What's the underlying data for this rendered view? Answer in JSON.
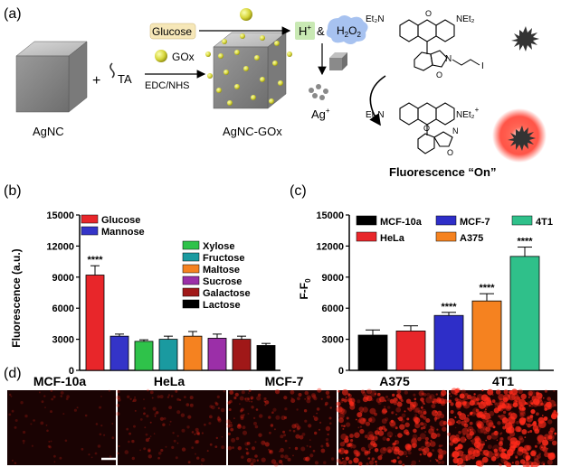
{
  "panel_a": {
    "label": "(a)",
    "agnc": "AgNC",
    "ta": "TA",
    "edc": "EDC/NHS",
    "gox": "GOx",
    "glucose": "Glucose",
    "agnc_gox": "AgNC-GOx",
    "hplus": "H",
    "hplus_sup": "+",
    "amp": "&",
    "h2o2_h": "H",
    "h2o2_2a": "2",
    "h2o2_o": "O",
    "h2o2_2b": "2",
    "ag": "Ag",
    "ag_sup": "+",
    "net2_1": "Et₂N",
    "net2_2": "NEt₂",
    "net2_3": "Et₂N",
    "net2_4": "NEt₂",
    "n_atom": "N",
    "o_atom": "O",
    "i_atom": "I",
    "o_carbonyl": "O",
    "o_ox": "O",
    "n_ox": "N",
    "n_plus": "+",
    "fluorescence_on": "Fluorescence “On”"
  },
  "chart_data": [
    {
      "type": "bar",
      "panel": "(b)",
      "ylabel": "Fluorescence (a.u.)",
      "ylim": [
        0,
        15000
      ],
      "yticks": [
        "0",
        "3000",
        "6000",
        "9000",
        "12000",
        "15000"
      ],
      "categories": [
        "Glucose",
        "Mannose",
        "Xylose",
        "Fructose",
        "Maltose",
        "Sucrose",
        "Galactose",
        "Lactose"
      ],
      "values": [
        9200,
        3300,
        2800,
        3000,
        3300,
        3100,
        3000,
        2400
      ],
      "errors": [
        900,
        200,
        150,
        300,
        450,
        400,
        300,
        200
      ],
      "colors": [
        "#e8262a",
        "#3434c8",
        "#2fc24a",
        "#1a9aa0",
        "#f58220",
        "#9b2fa8",
        "#a01818",
        "#000000"
      ],
      "annotations": [
        {
          "category": "Glucose",
          "text": "****"
        }
      ]
    },
    {
      "type": "bar",
      "panel": "(c)",
      "ylabel": "F-F",
      "ylabel_sub": "0",
      "ylim": [
        0,
        15000
      ],
      "yticks": [
        "0",
        "3000",
        "6000",
        "9000",
        "12000",
        "15000"
      ],
      "categories": [
        "MCF-10a",
        "HeLa",
        "MCF-7",
        "A375",
        "4T1"
      ],
      "values": [
        3400,
        3800,
        5300,
        6700,
        11000
      ],
      "errors": [
        500,
        500,
        300,
        700,
        900
      ],
      "colors": [
        "#000000",
        "#e8262a",
        "#2e2ec8",
        "#f58220",
        "#2fc08a"
      ],
      "annotations": [
        {
          "category": "MCF-7",
          "text": "****"
        },
        {
          "category": "A375",
          "text": "****"
        },
        {
          "category": "4T1",
          "text": "****"
        }
      ]
    }
  ],
  "panel_d": {
    "label": "(d)",
    "cells": [
      "MCF-10a",
      "HeLa",
      "MCF-7",
      "A375",
      "4T1"
    ],
    "intensity": [
      0.05,
      0.2,
      0.35,
      0.75,
      1.0
    ]
  }
}
